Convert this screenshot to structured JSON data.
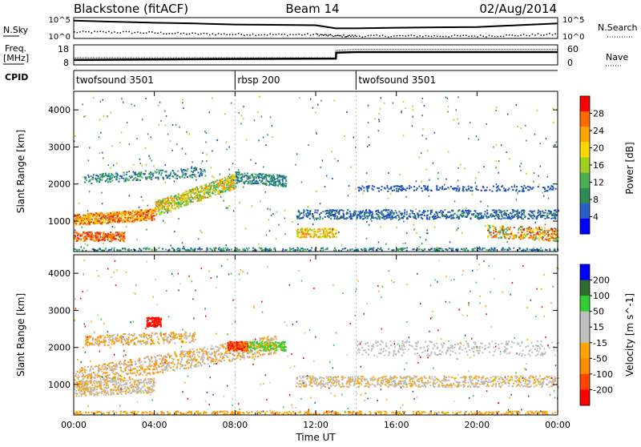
{
  "header": {
    "station": "Blackstone (fitACF)",
    "beam": "Beam 14",
    "date": "02/Aug/2014"
  },
  "strips": {
    "nsky_label": "N.Sky",
    "nsearch_label": "N.Search",
    "nsky_ticks": [
      "10^5",
      "10^0"
    ],
    "freq_label_line1": "Freq.",
    "freq_label_line2": "[MHz]",
    "freq_ticks": [
      "18",
      "8"
    ],
    "nave_label": "Nave",
    "nave_ticks": [
      "60",
      "0"
    ],
    "cpid_label": "CPID"
  },
  "colors": {
    "power_scale": [
      "#0000ff",
      "#2a5fc8",
      "#2e8b57",
      "#4caf50",
      "#a0d020",
      "#ffd700",
      "#ffa500",
      "#ff6a00",
      "#ff0000"
    ],
    "velocity_scale": [
      "#0000ff",
      "#2e6b2e",
      "#32cd32",
      "#c0c0c0",
      "#c0c0c0",
      "#ffa500",
      "#ff8c00",
      "#ff4500",
      "#ff0000"
    ],
    "power_background_colors": [
      "#e0301e",
      "#ff8c00",
      "#ffd000",
      "#a0d020",
      "#3cb371",
      "#2e8b57",
      "#1e4fbf"
    ],
    "velocity_background_colors": [
      "#c0c0c0",
      "#b8b8b8",
      "#ffa500",
      "#ff8c00",
      "#32cd32",
      "#1e4fbf"
    ]
  },
  "chart_data": [
    {
      "type": "line",
      "title": "N.Sky / N.Search",
      "x": [
        "00:00",
        "02:00",
        "04:00",
        "06:00",
        "08:00",
        "10:00",
        "12:00",
        "13:00",
        "14:00",
        "16:00",
        "18:00",
        "20:00",
        "22:00",
        "24:00"
      ],
      "series": [
        {
          "name": "N.Sky",
          "values": [
            4.6,
            4.3,
            4.0,
            3.8,
            3.5,
            3.4,
            3.3,
            2.4,
            2.4,
            2.6,
            2.7,
            2.8,
            3.3,
            3.8
          ]
        },
        {
          "name": "N.Search",
          "values": [
            1.5,
            1.5,
            1.3,
            1.0,
            0.9,
            0.8,
            0.8,
            0.4,
            0.4,
            0.4,
            0.4,
            0.4,
            0.6,
            0.9
          ]
        }
      ],
      "ylim": [
        0,
        5
      ],
      "yscale": "log"
    },
    {
      "type": "line",
      "title": "Freq. [MHz] / Nave",
      "x": [
        "00:00",
        "08:00",
        "13:00",
        "13:01",
        "14:00",
        "24:00"
      ],
      "series": [
        {
          "name": "Freq.",
          "values": [
            10.2,
            10.8,
            11.0,
            14.2,
            14.5,
            14.5
          ]
        },
        {
          "name": "Nave",
          "values": [
            20,
            20,
            20,
            45,
            48,
            48
          ]
        }
      ],
      "ylim": [
        8,
        18
      ]
    },
    {
      "type": "table",
      "title": "CPID",
      "rows": [
        {
          "start": "00:00",
          "end": "08:00",
          "label": "twofsound 3501"
        },
        {
          "start": "08:00",
          "end": "14:00",
          "label": "rbsp 200"
        },
        {
          "start": "14:00",
          "end": "24:00",
          "label": "twofsound 3501"
        }
      ]
    },
    {
      "type": "heatmap",
      "title": "Power [dB]",
      "ylabel": "Slant Range [km]",
      "xlim": [
        "00:00",
        "24:00"
      ],
      "ylim": [
        180,
        4500
      ],
      "yticks": [
        1000,
        2000,
        3000,
        4000
      ],
      "colorbar_label": "Power [dB]",
      "colorbar_ticks": [
        4,
        8,
        12,
        16,
        20,
        24,
        28
      ]
    },
    {
      "type": "heatmap",
      "title": "Velocity [m s^-1]",
      "ylabel": "Slant Range [km]",
      "xlabel": "Time UT",
      "xlim": [
        "00:00",
        "24:00"
      ],
      "xticks": [
        "00:00",
        "04:00",
        "08:00",
        "12:00",
        "16:00",
        "20:00",
        "00:00"
      ],
      "ylim": [
        180,
        4500
      ],
      "yticks": [
        1000,
        2000,
        3000,
        4000
      ],
      "colorbar_label": "Velocity [m s^-1]",
      "colorbar_ticks": [
        200,
        100,
        50,
        15,
        -15,
        -50,
        -100,
        -200
      ]
    }
  ]
}
